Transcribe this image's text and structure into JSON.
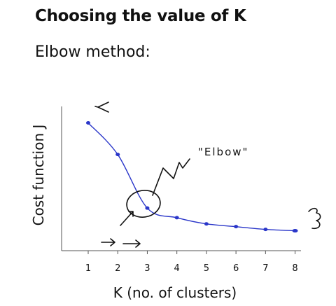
{
  "slide": {
    "title": "Choosing the value of K",
    "subtitle": "Elbow method:"
  },
  "annotations": {
    "elbow": "\"Elbow\""
  },
  "chart_data": {
    "type": "line",
    "x": [
      1,
      2,
      3,
      4,
      5,
      6,
      7,
      8
    ],
    "series": [
      {
        "values": [
          8.8,
          6.5,
          2.6,
          1.9,
          1.45,
          1.25,
          1.05,
          0.95
        ],
        "color": "#2a36c9"
      }
    ],
    "xlabel": "K (no. of clusters)",
    "ylabel": "Cost function J",
    "ticks": [
      "1",
      "2",
      "3",
      "4",
      "5",
      "6",
      "7",
      "8"
    ],
    "xlim": [
      0.1,
      8.2
    ],
    "ylim": [
      -0.5,
      10
    ],
    "grid": false,
    "legend": "none"
  }
}
